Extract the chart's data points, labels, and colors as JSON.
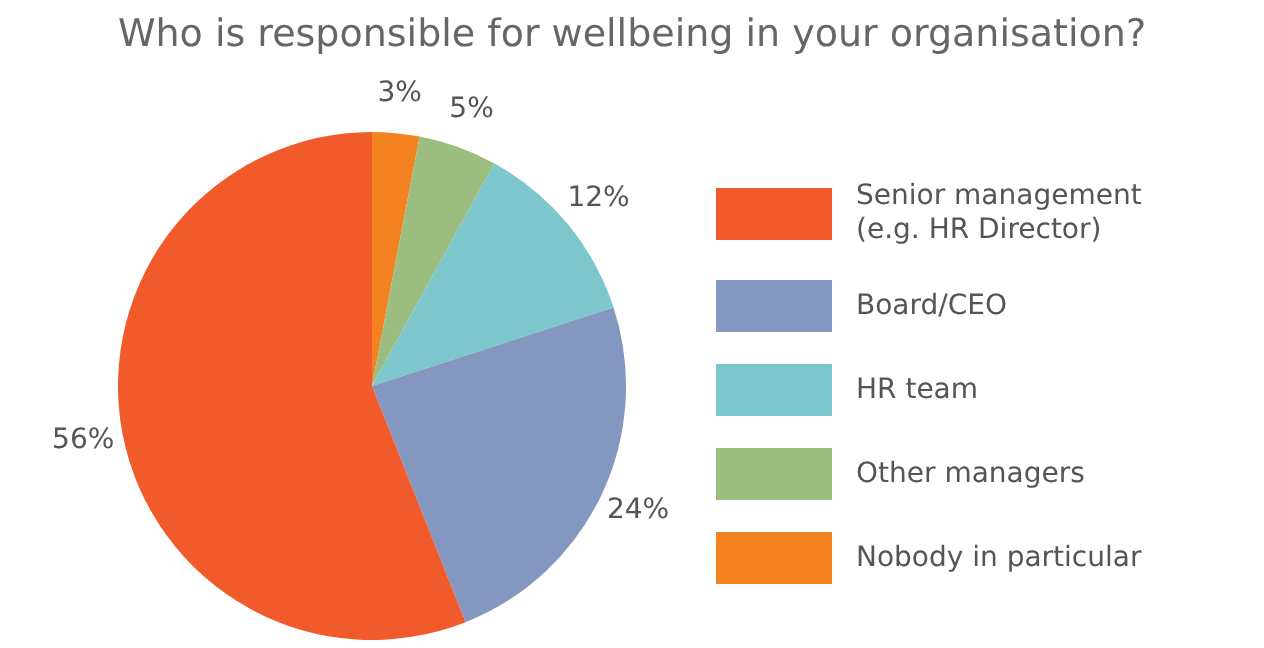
{
  "chart_data": {
    "type": "pie",
    "title": "Who is responsible for wellbeing in your organisation?",
    "categories": [
      "Senior management\n(e.g. HR Director)",
      "Board/CEO",
      "HR team",
      "Other managers",
      "Nobody in particular"
    ],
    "values": [
      56,
      24,
      12,
      5,
      3
    ],
    "colors": [
      "#f15a2b",
      "#8497c0",
      "#7dc6cc",
      "#9bbd7f",
      "#f58220"
    ],
    "value_labels": [
      "56%",
      "24%",
      "12%",
      "5%",
      "3%"
    ],
    "legend": "right"
  }
}
